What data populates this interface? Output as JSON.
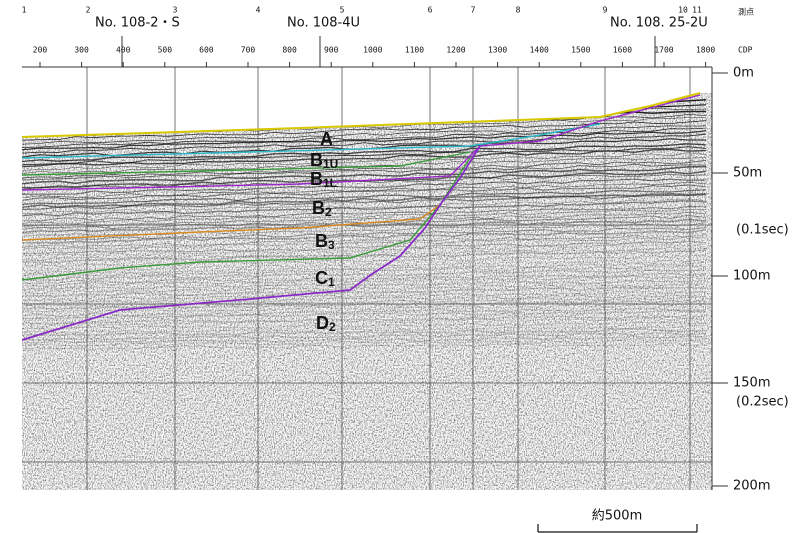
{
  "survey_points": [
    "1",
    "2",
    "3",
    "4",
    "5",
    "6",
    "7",
    "8",
    "9",
    "10",
    "11"
  ],
  "survey_point_header": "測点",
  "wells": [
    "No. 108-2・S",
    "No. 108-4U",
    "No. 108. 25-2U"
  ],
  "cdp": {
    "header": "CDP",
    "labels": [
      "200",
      "300",
      "400",
      "500",
      "600",
      "700",
      "800",
      "900",
      "1000",
      "1100",
      "1200",
      "1300",
      "1400",
      "1500",
      "1600",
      "1700",
      "1800"
    ]
  },
  "depth_labels": [
    "0m",
    "50m",
    "(0.1sec)",
    "100m",
    "150m",
    "(0.2sec)",
    "200m"
  ],
  "layers": [
    {
      "base": "A"
    },
    {
      "base": "B",
      "sub": "1U"
    },
    {
      "base": "B",
      "sub": "1L"
    },
    {
      "base": "B",
      "sub": "2"
    },
    {
      "base": "B",
      "sub": "3"
    },
    {
      "base": "C",
      "sub": "1"
    },
    {
      "base": "D",
      "sub": "2"
    }
  ],
  "scale": "約500m"
}
